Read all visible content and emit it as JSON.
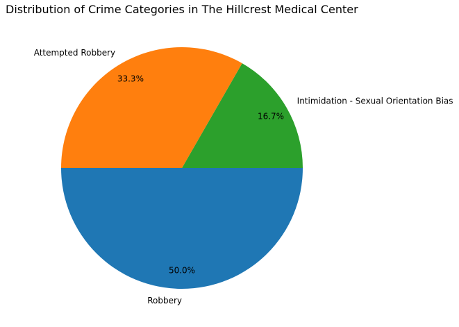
{
  "chart_data": {
    "type": "pie",
    "title": "Distribution of Crime Categories in The Hillcrest Medical Center",
    "categories": [
      "Intimidation - Sexual Orientation Bias",
      "Attempted Robbery",
      "Robbery"
    ],
    "values": [
      16.7,
      33.3,
      50.0
    ],
    "percent_labels": [
      "16.7%",
      "33.3%",
      "50.0%"
    ],
    "colors": [
      "#2ca02c",
      "#ff7f0e",
      "#1f77b4"
    ],
    "start_angle_deg": 0,
    "direction": "counterclockwise"
  }
}
